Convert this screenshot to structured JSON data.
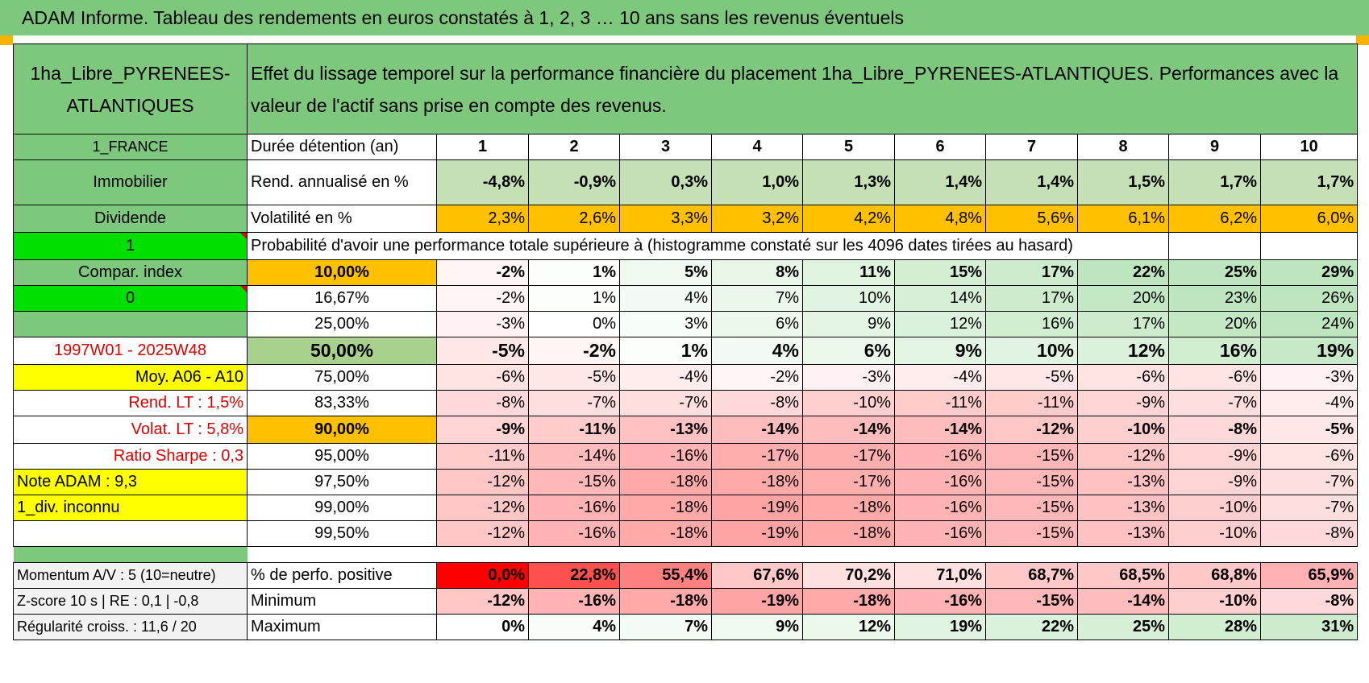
{
  "title": "ADAM Informe. Tableau des rendements en euros constatés à 1, 2, 3 … 10 ans sans les revenus éventuels",
  "asset_name": "1ha_Libre_PYRENEES-ATLANTIQUES",
  "description": "Effet du lissage temporel sur la performance financière du placement 1ha_Libre_PYRENEES-ATLANTIQUES. Performances avec la valeur de l'actif sans prise en compte des revenus.",
  "left": {
    "country": "1_FRANCE",
    "category": "Immobilier",
    "type": "Dividende",
    "field_1": "1",
    "compar_index": "Compar. index",
    "field_0": "0",
    "period": "1997W01 - 2025W48",
    "moy": "Moy. A06 - A10",
    "rend_lt": "Rend. LT :    1,5%",
    "volat_lt": "Volat. LT :    5,8%",
    "sharpe": "Ratio Sharpe :     0,3",
    "note": "Note ADAM : 9,3",
    "div": "1_div. inconnu",
    "momentum": "Momentum A/V : 5 (10=neutre)",
    "zscore": "Z-score 10 s | RE : 0,1 | -0,8",
    "regularite": "Régularité croiss. : 11,6 / 20"
  },
  "row_labels": {
    "duree": "Durée détention (an)",
    "rend": "Rend. annualisé en %",
    "vol": "Volatilité en %",
    "proba": "Probabilité d'avoir une performance totale supérieure à (histogramme constaté sur les 4096 dates tirées au hasard)",
    "positive": "% de perfo. positive",
    "minimum": "Minimum",
    "maximum": "Maximum"
  },
  "years": [
    "1",
    "2",
    "3",
    "4",
    "5",
    "6",
    "7",
    "8",
    "9",
    "10"
  ],
  "rend": [
    "-4,8%",
    "-0,9%",
    "0,3%",
    "1,0%",
    "1,3%",
    "1,4%",
    "1,4%",
    "1,5%",
    "1,7%",
    "1,7%"
  ],
  "vol": [
    "2,3%",
    "2,6%",
    "3,3%",
    "3,2%",
    "4,2%",
    "4,8%",
    "5,6%",
    "6,1%",
    "6,2%",
    "6,0%"
  ],
  "percentiles": [
    {
      "p": "10,00%",
      "v": [
        "-2%",
        "1%",
        "5%",
        "8%",
        "11%",
        "15%",
        "17%",
        "22%",
        "25%",
        "29%"
      ]
    },
    {
      "p": "16,67%",
      "v": [
        "-2%",
        "1%",
        "4%",
        "7%",
        "10%",
        "14%",
        "17%",
        "20%",
        "23%",
        "26%"
      ]
    },
    {
      "p": "25,00%",
      "v": [
        "-3%",
        "0%",
        "3%",
        "6%",
        "9%",
        "12%",
        "16%",
        "17%",
        "20%",
        "24%"
      ]
    },
    {
      "p": "50,00%",
      "v": [
        "-5%",
        "-2%",
        "1%",
        "4%",
        "6%",
        "9%",
        "10%",
        "12%",
        "16%",
        "19%"
      ]
    },
    {
      "p": "75,00%",
      "v": [
        "-6%",
        "-5%",
        "-4%",
        "-2%",
        "-3%",
        "-4%",
        "-5%",
        "-6%",
        "-6%",
        "-3%"
      ]
    },
    {
      "p": "83,33%",
      "v": [
        "-8%",
        "-7%",
        "-7%",
        "-8%",
        "-10%",
        "-11%",
        "-11%",
        "-9%",
        "-7%",
        "-4%"
      ]
    },
    {
      "p": "90,00%",
      "v": [
        "-9%",
        "-11%",
        "-13%",
        "-14%",
        "-14%",
        "-14%",
        "-12%",
        "-10%",
        "-8%",
        "-5%"
      ]
    },
    {
      "p": "95,00%",
      "v": [
        "-11%",
        "-14%",
        "-16%",
        "-17%",
        "-17%",
        "-16%",
        "-15%",
        "-12%",
        "-9%",
        "-6%"
      ]
    },
    {
      "p": "97,50%",
      "v": [
        "-12%",
        "-15%",
        "-18%",
        "-18%",
        "-17%",
        "-16%",
        "-15%",
        "-13%",
        "-9%",
        "-7%"
      ]
    },
    {
      "p": "99,00%",
      "v": [
        "-12%",
        "-16%",
        "-18%",
        "-19%",
        "-18%",
        "-16%",
        "-15%",
        "-13%",
        "-10%",
        "-7%"
      ]
    },
    {
      "p": "99,50%",
      "v": [
        "-12%",
        "-16%",
        "-18%",
        "-19%",
        "-18%",
        "-16%",
        "-15%",
        "-13%",
        "-10%",
        "-8%"
      ]
    }
  ],
  "positive": [
    "0,0%",
    "22,8%",
    "55,4%",
    "67,6%",
    "70,2%",
    "71,0%",
    "68,7%",
    "68,5%",
    "68,8%",
    "65,9%"
  ],
  "minimum": [
    "-12%",
    "-16%",
    "-18%",
    "-19%",
    "-18%",
    "-16%",
    "-15%",
    "-14%",
    "-10%",
    "-8%"
  ],
  "maximum": [
    "0%",
    "4%",
    "7%",
    "9%",
    "12%",
    "19%",
    "22%",
    "25%",
    "28%",
    "31%"
  ]
}
